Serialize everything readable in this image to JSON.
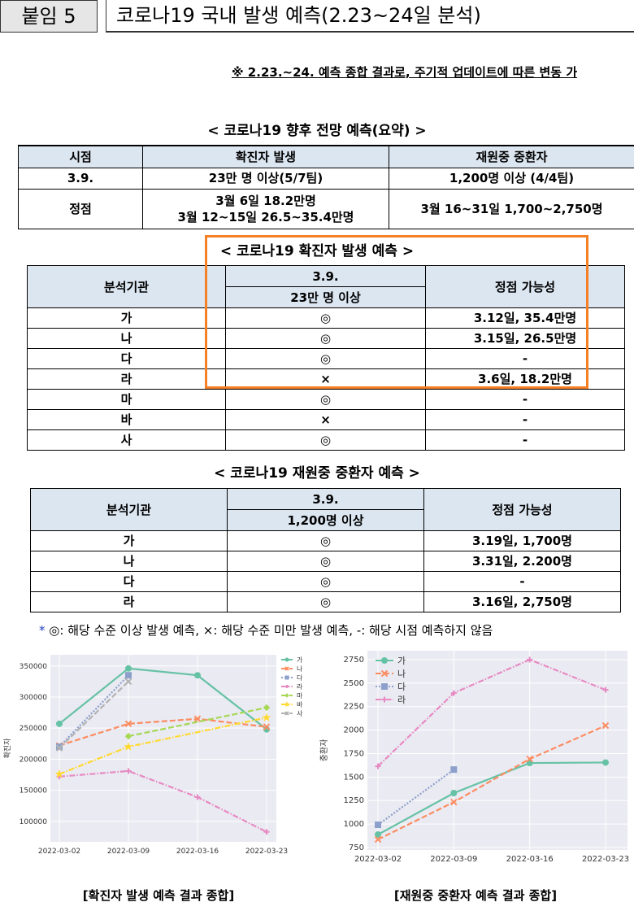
{
  "header": {
    "label": "붙임 5",
    "title": "코로나19 국내 발생 예측(2.23~24일 분석)"
  },
  "note": "※ 2.23.~24. 예측 종합 결과로, 주기적 업데이트에 따른 변동 가",
  "summary": {
    "title": "< 코로나19 향후 전망 예측(요약) >",
    "header": [
      "시점",
      "확진자 발생",
      "재원중 중환자"
    ],
    "rows": [
      [
        [
          "3.9."
        ],
        [
          "23만 명 이상(5/7팀)"
        ],
        [
          "1,200명 이상 (4/4팀)"
        ]
      ],
      [
        [
          "정점"
        ],
        [
          "3월 6일 18.2만명",
          "3월 12~15일 26.5~35.4만명"
        ],
        [
          "3월 16~31일 1,700~2,750명"
        ]
      ]
    ]
  },
  "cases_table": {
    "title": "< 코로나19 확진자 발생 예측 >",
    "header": {
      "agency": "분석기관",
      "date": "3.9.",
      "threshold": "23만 명 이상",
      "peak": "정점 가능성"
    },
    "rows": [
      [
        "가",
        "◎",
        "3.12일, 35.4만명"
      ],
      [
        "나",
        "◎",
        "3.15일, 26.5만명"
      ],
      [
        "다",
        "◎",
        "-"
      ],
      [
        "라",
        "×",
        "3.6일, 18.2만명"
      ],
      [
        "마",
        "◎",
        "-"
      ],
      [
        "바",
        "×",
        "-"
      ],
      [
        "사",
        "◎",
        "-"
      ]
    ]
  },
  "icu_table": {
    "title": "< 코로나19 재원중 중환자 예측 >",
    "header": {
      "agency": "분석기관",
      "date": "3.9.",
      "threshold": "1,200명 이상",
      "peak": "정점 가능성"
    },
    "rows": [
      [
        "가",
        "◎",
        "3.19일, 1,700명"
      ],
      [
        "나",
        "◎",
        "3.31일, 2.200명"
      ],
      [
        "다",
        "◎",
        "-"
      ],
      [
        "라",
        "◎",
        "3.16일, 2,750명"
      ]
    ]
  },
  "footnote": {
    "mark": "*",
    "text": "◎: 해당 수준 이상 발생 예측, ×: 해당 수준 미만 발생 예측, -: 해당 시점 예측하지 않음"
  },
  "chart_data": [
    {
      "type": "line",
      "y_label": "확진자",
      "caption": "[확진자 발생 예측 결과 종합]",
      "categories": [
        "2022-03-02",
        "2022-03-09",
        "2022-03-16",
        "2022-03-23"
      ],
      "ylim": [
        67000,
        368000
      ],
      "yticks": [
        100000,
        150000,
        200000,
        250000,
        300000,
        350000
      ],
      "grid": true,
      "legend": "right",
      "series": [
        {
          "name": "가",
          "color": "#66c2a5",
          "linestyle": "solid",
          "marker": "circle",
          "x": [
            "2022-03-02",
            "2022-03-09",
            "2022-03-16",
            "2022-03-23"
          ],
          "values": [
            257000,
            346000,
            335000,
            248000
          ]
        },
        {
          "name": "나",
          "color": "#fc8d62",
          "linestyle": "dashed",
          "marker": "x",
          "x": [
            "2022-03-02",
            "2022-03-09",
            "2022-03-16",
            "2022-03-23"
          ],
          "values": [
            222000,
            257000,
            265000,
            252000
          ]
        },
        {
          "name": "다",
          "color": "#8da0cb",
          "linestyle": "dotted",
          "marker": "square",
          "x": [
            "2022-03-02",
            "2022-03-09"
          ],
          "values": [
            220000,
            335000
          ]
        },
        {
          "name": "라",
          "color": "#e78ac3",
          "linestyle": "dashdot",
          "marker": "plus",
          "x": [
            "2022-03-02",
            "2022-03-09",
            "2022-03-16",
            "2022-03-23"
          ],
          "values": [
            172000,
            181000,
            139000,
            83000
          ]
        },
        {
          "name": "마",
          "color": "#a6d854",
          "linestyle": "dashed",
          "marker": "diamond",
          "x": [
            "2022-03-09",
            "2022-03-23"
          ],
          "values": [
            237000,
            283000
          ]
        },
        {
          "name": "바",
          "color": "#ffd92f",
          "linestyle": "dashdot",
          "marker": "star",
          "x": [
            "2022-03-02",
            "2022-03-09",
            "2022-03-23"
          ],
          "values": [
            176000,
            220000,
            267000
          ]
        },
        {
          "name": "사",
          "color": "#b3b3b3",
          "linestyle": "dashed",
          "marker": "x",
          "x": [
            "2022-03-02",
            "2022-03-09"
          ],
          "values": [
            218000,
            325000
          ]
        }
      ]
    },
    {
      "type": "line",
      "y_label": "중환자",
      "caption": "[재원중 중환자 예측 결과 종합]",
      "categories": [
        "2022-03-02",
        "2022-03-09",
        "2022-03-16",
        "2022-03-23"
      ],
      "ylim": [
        724,
        2845
      ],
      "yticks": [
        750,
        1000,
        1250,
        1500,
        1750,
        2000,
        2250,
        2500,
        2750
      ],
      "grid": true,
      "legend": "upper left",
      "series": [
        {
          "name": "가",
          "color": "#66c2a5",
          "linestyle": "solid",
          "marker": "circle",
          "x": [
            "2022-03-02",
            "2022-03-09",
            "2022-03-16",
            "2022-03-23"
          ],
          "values": [
            888,
            1330,
            1650,
            1655
          ]
        },
        {
          "name": "나",
          "color": "#fc8d62",
          "linestyle": "dashed",
          "marker": "x",
          "x": [
            "2022-03-02",
            "2022-03-09",
            "2022-03-16",
            "2022-03-23"
          ],
          "values": [
            836,
            1234,
            1693,
            2048
          ]
        },
        {
          "name": "다",
          "color": "#8da0cb",
          "linestyle": "dotted",
          "marker": "square",
          "x": [
            "2022-03-02",
            "2022-03-09"
          ],
          "values": [
            992,
            1580
          ]
        },
        {
          "name": "라",
          "color": "#e78ac3",
          "linestyle": "dashdot",
          "marker": "plus",
          "x": [
            "2022-03-02",
            "2022-03-09",
            "2022-03-16",
            "2022-03-23"
          ],
          "values": [
            1615,
            2394,
            2750,
            2428
          ]
        }
      ]
    }
  ]
}
